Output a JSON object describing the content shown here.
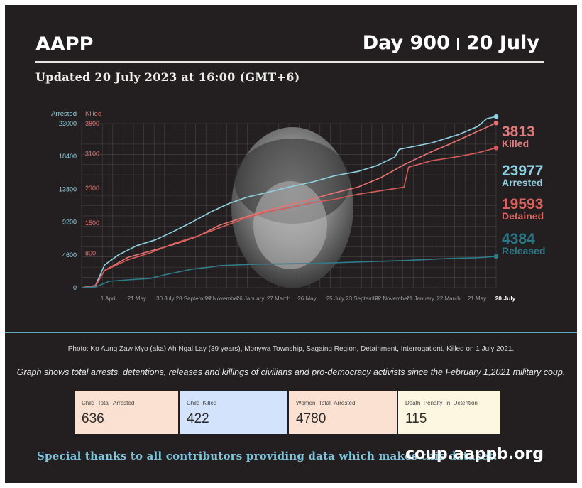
{
  "header": {
    "org": "AAPP",
    "day": "Day 900",
    "date": "20 July",
    "updated": "Updated 20 July 2023 at 16:00 (GMT+6)"
  },
  "chart_data": {
    "type": "line",
    "x_tick_labels": [
      "1 April",
      "21 May",
      "30 July",
      "28 September",
      "27 November",
      "26 January",
      "27 March",
      "26 May",
      "25 July",
      "23 September",
      "22 November",
      "21 January",
      "22 March",
      "21 May",
      "20 July"
    ],
    "left_axis": {
      "label": "Arrested",
      "ticks": [
        0,
        4600,
        9200,
        13800,
        18400,
        23000
      ],
      "range": [
        0,
        23000
      ]
    },
    "right_axis": {
      "label": "Killed",
      "ticks": [
        0,
        800,
        1500,
        2300,
        3100,
        3800
      ],
      "range": [
        0,
        3800
      ]
    },
    "grid": true,
    "day_range": [
      0,
      900
    ],
    "series": [
      {
        "name": "Arrested",
        "axis": "left",
        "color": "#8fd0e0",
        "final_value": "23977",
        "points": [
          [
            0,
            0
          ],
          [
            30,
            300
          ],
          [
            50,
            3200
          ],
          [
            80,
            4600
          ],
          [
            120,
            5900
          ],
          [
            160,
            6700
          ],
          [
            200,
            7900
          ],
          [
            240,
            9200
          ],
          [
            280,
            10600
          ],
          [
            320,
            11800
          ],
          [
            360,
            12700
          ],
          [
            400,
            13300
          ],
          [
            450,
            14100
          ],
          [
            500,
            14800
          ],
          [
            550,
            15700
          ],
          [
            600,
            16300
          ],
          [
            640,
            17100
          ],
          [
            680,
            18300
          ],
          [
            690,
            19400
          ],
          [
            760,
            20300
          ],
          [
            820,
            21500
          ],
          [
            860,
            22600
          ],
          [
            880,
            23700
          ],
          [
            900,
            23977
          ]
        ]
      },
      {
        "name": "Killed",
        "axis": "right",
        "color": "#e57373",
        "final_value": "3813",
        "points": [
          [
            0,
            0
          ],
          [
            30,
            50
          ],
          [
            50,
            400
          ],
          [
            100,
            700
          ],
          [
            160,
            880
          ],
          [
            200,
            1000
          ],
          [
            250,
            1180
          ],
          [
            300,
            1450
          ],
          [
            350,
            1620
          ],
          [
            400,
            1780
          ],
          [
            450,
            1920
          ],
          [
            500,
            2050
          ],
          [
            550,
            2200
          ],
          [
            600,
            2330
          ],
          [
            650,
            2550
          ],
          [
            700,
            2850
          ],
          [
            760,
            3150
          ],
          [
            800,
            3330
          ],
          [
            860,
            3620
          ],
          [
            900,
            3813
          ]
        ]
      },
      {
        "name": "Detained",
        "axis": "left",
        "color": "#d55a5a",
        "final_value": "19593",
        "points": [
          [
            0,
            0
          ],
          [
            30,
            200
          ],
          [
            50,
            2400
          ],
          [
            100,
            3900
          ],
          [
            150,
            4900
          ],
          [
            200,
            6200
          ],
          [
            250,
            7200
          ],
          [
            300,
            8400
          ],
          [
            350,
            9600
          ],
          [
            400,
            10600
          ],
          [
            450,
            11200
          ],
          [
            500,
            11900
          ],
          [
            550,
            12400
          ],
          [
            600,
            13100
          ],
          [
            650,
            13600
          ],
          [
            700,
            14100
          ],
          [
            710,
            16900
          ],
          [
            760,
            17800
          ],
          [
            820,
            18400
          ],
          [
            860,
            18900
          ],
          [
            900,
            19593
          ]
        ]
      },
      {
        "name": "Released",
        "axis": "left",
        "color": "#2f7c8a",
        "final_value": "4384",
        "points": [
          [
            0,
            0
          ],
          [
            30,
            100
          ],
          [
            60,
            900
          ],
          [
            100,
            1100
          ],
          [
            150,
            1300
          ],
          [
            180,
            1800
          ],
          [
            210,
            2200
          ],
          [
            240,
            2600
          ],
          [
            280,
            2900
          ],
          [
            300,
            3100
          ],
          [
            380,
            3300
          ],
          [
            500,
            3400
          ],
          [
            600,
            3600
          ],
          [
            700,
            3800
          ],
          [
            800,
            4100
          ],
          [
            860,
            4200
          ],
          [
            900,
            4384
          ]
        ]
      }
    ],
    "end_labels": [
      {
        "value": "3813",
        "label": "Killed",
        "color": "#e07b7b"
      },
      {
        "value": "23977",
        "label": "Arrested",
        "color": "#8fd0e0"
      },
      {
        "value": "19593",
        "label": "Detained",
        "color": "#d9625f"
      },
      {
        "value": "4384",
        "label": "Released",
        "color": "#2a7686"
      }
    ]
  },
  "photo_credit": "Photo: Ko Aung Zaw Myo (aka) Ah Ngal Lay (39 years), Monywa Township, Sagaing Region, Detainment, Interrogationt, Killed on 1 July 2021.",
  "graph_desc": "Graph shows total arrests, detentions, releases and killings of civilians and pro-democracy activists since the February 1,2021 military coup.",
  "stats": [
    {
      "label": "Child_Total_Arrested",
      "value": "636",
      "bg": "#fbe1d1"
    },
    {
      "label": "Child_Killed",
      "value": "422",
      "bg": "#d2e3fb"
    },
    {
      "label": "Women_Total_Arrested",
      "value": "4780",
      "bg": "#fbe1d1"
    },
    {
      "label": "Death_Penalty_in_Detention",
      "value": "115",
      "bg": "#fdf7e2"
    }
  ],
  "footer": {
    "thanks": "Special thanks to all contributors providing data which makes this dataset.",
    "website": "coup.aappb.org"
  }
}
